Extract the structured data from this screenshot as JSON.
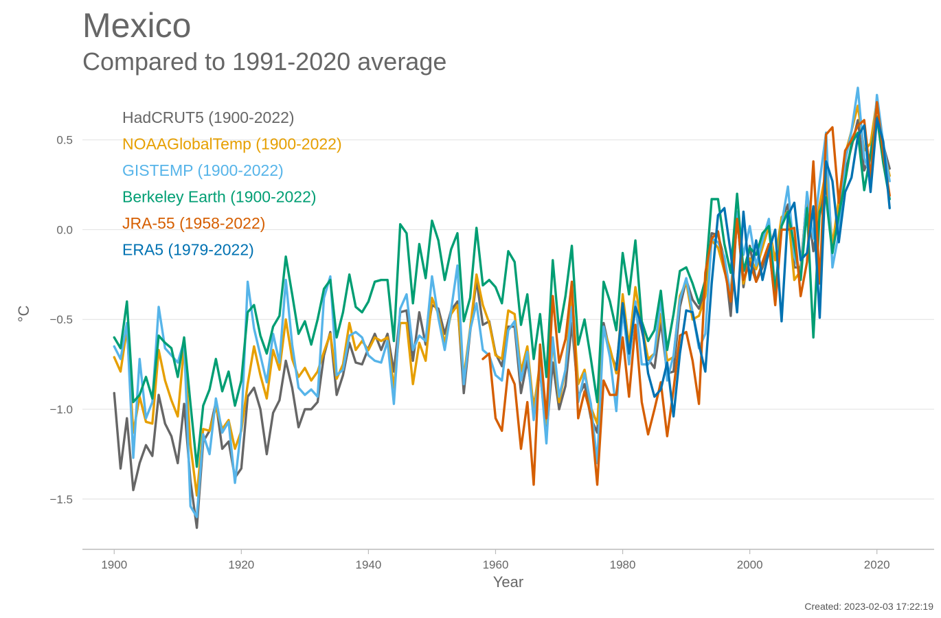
{
  "title": "Mexico",
  "subtitle": "Compared to 1991-2020 average",
  "created": "Created: 2023-02-03 17:22:19",
  "chart_data": {
    "type": "line",
    "title": "Mexico",
    "subtitle": "Compared to 1991-2020 average",
    "xlabel": "Year",
    "ylabel": "°C",
    "xlim": [
      1895,
      2029
    ],
    "ylim": [
      -1.78,
      0.82
    ],
    "xticks": [
      1900,
      1920,
      1940,
      1960,
      1980,
      2000,
      2020
    ],
    "yticks": [
      0.5,
      0.0,
      -0.5,
      -1.0,
      -1.5
    ],
    "ytick_labels": [
      "0.5",
      "0.0",
      "−0.5",
      "−1.0",
      "−1.5"
    ],
    "grid": "horizontal",
    "legend_placement": "top-left",
    "series": [
      {
        "name": "HadCRUT5 (1900-2022)",
        "color": "#666666",
        "start": 1900,
        "values": [
          -0.91,
          -1.33,
          -1.05,
          -1.45,
          -1.3,
          -1.2,
          -1.26,
          -0.92,
          -1.08,
          -1.15,
          -1.3,
          -0.97,
          -1.4,
          -1.66,
          -1.18,
          -1.12,
          -0.96,
          -1.22,
          -1.18,
          -1.38,
          -1.33,
          -0.93,
          -0.88,
          -1.0,
          -1.25,
          -1.02,
          -0.95,
          -0.73,
          -0.88,
          -1.1,
          -1.0,
          -1.0,
          -0.96,
          -0.7,
          -0.57,
          -0.92,
          -0.81,
          -0.63,
          -0.74,
          -0.75,
          -0.66,
          -0.58,
          -0.67,
          -0.58,
          -0.79,
          -0.46,
          -0.45,
          -0.73,
          -0.46,
          -0.64,
          -0.42,
          -0.44,
          -0.58,
          -0.45,
          -0.4,
          -0.91,
          -0.57,
          -0.28,
          -0.53,
          -0.51,
          -0.69,
          -0.76,
          -0.54,
          -0.54,
          -0.91,
          -0.73,
          -0.98,
          -0.79,
          -1.14,
          -0.74,
          -1.0,
          -0.87,
          -0.52,
          -0.93,
          -0.86,
          -1.05,
          -1.13,
          -0.52,
          -0.68,
          -0.77,
          -0.44,
          -0.73,
          -0.42,
          -0.56,
          -0.72,
          -0.77,
          -0.51,
          -0.8,
          -0.79,
          -0.43,
          -0.28,
          -0.39,
          -0.44,
          -0.33,
          -0.02,
          -0.03,
          -0.16,
          -0.48,
          0.08,
          -0.32,
          -0.09,
          -0.29,
          -0.21,
          -0.09,
          -0.4,
          0.05,
          0.14,
          -0.21,
          -0.21,
          0.18,
          -0.12,
          0.08,
          0.26,
          -0.12,
          0.12,
          0.32,
          0.46,
          0.61,
          0.33,
          0.42,
          0.72,
          0.47,
          0.34
        ]
      },
      {
        "name": "NOAAGlobalTemp (1900-2022)",
        "color": "#E69F00",
        "start": 1900,
        "values": [
          -0.71,
          -0.79,
          -0.55,
          -1.13,
          -0.93,
          -1.07,
          -1.08,
          -0.67,
          -0.84,
          -0.95,
          -1.04,
          -0.65,
          -1.2,
          -1.48,
          -1.11,
          -1.12,
          -0.99,
          -1.11,
          -1.06,
          -1.22,
          -1.12,
          -0.86,
          -0.65,
          -0.81,
          -0.94,
          -0.67,
          -0.78,
          -0.5,
          -0.72,
          -0.82,
          -0.77,
          -0.84,
          -0.79,
          -0.68,
          -0.58,
          -0.83,
          -0.75,
          -0.52,
          -0.67,
          -0.62,
          -0.67,
          -0.6,
          -0.62,
          -0.6,
          -0.88,
          -0.52,
          -0.52,
          -0.86,
          -0.63,
          -0.73,
          -0.38,
          -0.47,
          -0.63,
          -0.47,
          -0.42,
          -0.82,
          -0.55,
          -0.25,
          -0.42,
          -0.52,
          -0.7,
          -0.72,
          -0.45,
          -0.47,
          -0.79,
          -0.65,
          -1.0,
          -0.74,
          -1.08,
          -0.62,
          -0.96,
          -0.78,
          -0.34,
          -0.86,
          -0.78,
          -0.99,
          -1.08,
          -0.55,
          -0.66,
          -0.8,
          -0.36,
          -0.65,
          -0.32,
          -0.53,
          -0.72,
          -0.69,
          -0.47,
          -0.73,
          -0.71,
          -0.37,
          -0.29,
          -0.5,
          -0.48,
          -0.37,
          -0.06,
          -0.1,
          -0.23,
          -0.35,
          0.09,
          -0.3,
          -0.16,
          -0.22,
          -0.1,
          0.02,
          -0.17,
          0.07,
          0.1,
          -0.28,
          -0.23,
          0.2,
          -0.05,
          0.14,
          0.33,
          -0.09,
          0.17,
          0.42,
          0.55,
          0.69,
          0.44,
          0.48,
          0.72,
          0.45,
          0.3
        ]
      },
      {
        "name": "GISTEMP (1900-2022)",
        "color": "#56B4E9",
        "start": 1900,
        "values": [
          -0.65,
          -0.72,
          -0.52,
          -1.27,
          -0.72,
          -1.05,
          -0.96,
          -0.43,
          -0.66,
          -0.7,
          -0.74,
          -0.62,
          -1.54,
          -1.6,
          -1.14,
          -1.25,
          -0.94,
          -1.13,
          -1.07,
          -1.41,
          -1.1,
          -0.29,
          -0.55,
          -0.7,
          -0.85,
          -0.58,
          -0.74,
          -0.28,
          -0.64,
          -0.88,
          -0.92,
          -0.89,
          -0.93,
          -0.38,
          -0.26,
          -0.81,
          -0.78,
          -0.59,
          -0.57,
          -0.6,
          -0.7,
          -0.73,
          -0.74,
          -0.62,
          -0.97,
          -0.44,
          -0.36,
          -0.67,
          -0.59,
          -0.62,
          -0.26,
          -0.49,
          -0.67,
          -0.45,
          -0.2,
          -0.86,
          -0.56,
          -0.41,
          -0.67,
          -0.7,
          -0.81,
          -0.84,
          -0.56,
          -0.51,
          -0.84,
          -0.68,
          -1.06,
          -0.77,
          -1.19,
          -0.6,
          -0.93,
          -0.78,
          -0.43,
          -0.96,
          -0.8,
          -0.97,
          -1.3,
          -0.54,
          -0.71,
          -1.01,
          -0.44,
          -0.75,
          -0.4,
          -0.75,
          -0.75,
          -0.69,
          -0.38,
          -0.84,
          -0.7,
          -0.39,
          -0.27,
          -0.46,
          -0.66,
          -0.58,
          -0.05,
          -0.07,
          -0.15,
          -0.37,
          0.1,
          -0.14,
          0.02,
          -0.2,
          -0.06,
          0.06,
          -0.33,
          0.03,
          0.24,
          -0.15,
          -0.26,
          0.21,
          -0.05,
          0.27,
          0.54,
          -0.21,
          -0.02,
          0.38,
          0.55,
          0.79,
          0.4,
          0.3,
          0.75,
          0.48,
          0.27
        ]
      },
      {
        "name": "Berkeley Earth (1900-2022)",
        "color": "#009E73",
        "start": 1900,
        "values": [
          -0.6,
          -0.66,
          -0.4,
          -0.96,
          -0.92,
          -0.82,
          -0.94,
          -0.59,
          -0.63,
          -0.66,
          -0.82,
          -0.6,
          -0.97,
          -1.32,
          -0.98,
          -0.89,
          -0.72,
          -0.9,
          -0.79,
          -0.98,
          -0.84,
          -0.46,
          -0.42,
          -0.59,
          -0.69,
          -0.54,
          -0.48,
          -0.15,
          -0.36,
          -0.58,
          -0.51,
          -0.64,
          -0.5,
          -0.33,
          -0.28,
          -0.6,
          -0.46,
          -0.25,
          -0.43,
          -0.46,
          -0.4,
          -0.29,
          -0.28,
          -0.28,
          -0.62,
          0.03,
          -0.02,
          -0.41,
          -0.08,
          -0.27,
          0.05,
          -0.06,
          -0.28,
          -0.11,
          -0.02,
          -0.51,
          -0.38,
          0.01,
          -0.31,
          -0.28,
          -0.32,
          -0.41,
          -0.12,
          -0.18,
          -0.53,
          -0.36,
          -0.72,
          -0.47,
          -0.82,
          -0.17,
          -0.57,
          -0.37,
          -0.09,
          -0.64,
          -0.5,
          -0.72,
          -0.96,
          -0.29,
          -0.4,
          -0.56,
          -0.13,
          -0.36,
          -0.06,
          -0.51,
          -0.62,
          -0.56,
          -0.34,
          -0.67,
          -0.47,
          -0.23,
          -0.21,
          -0.3,
          -0.41,
          -0.28,
          0.17,
          0.17,
          -0.08,
          -0.24,
          0.2,
          -0.23,
          -0.1,
          -0.14,
          -0.02,
          0.02,
          -0.35,
          0.02,
          0.1,
          -0.09,
          -0.28,
          0.12,
          -0.6,
          0.1,
          0.18,
          -0.13,
          0.08,
          0.27,
          0.48,
          0.54,
          0.22,
          0.42,
          0.63,
          0.37,
          0.17
        ]
      },
      {
        "name": "JRA-55 (1958-2022)",
        "color": "#D55E00",
        "start": 1958,
        "values": [
          -0.72,
          -0.69,
          -1.05,
          -1.12,
          -0.78,
          -0.86,
          -1.22,
          -0.96,
          -1.42,
          -0.64,
          -1.05,
          -0.37,
          -0.74,
          -0.61,
          -0.29,
          -1.05,
          -0.9,
          -1.03,
          -1.42,
          -0.84,
          -0.92,
          -0.92,
          -0.6,
          -0.93,
          -0.53,
          -0.96,
          -1.14,
          -1.0,
          -0.85,
          -1.15,
          -0.89,
          -0.59,
          -0.57,
          -0.73,
          -0.97,
          -0.24,
          -0.05,
          -0.01,
          -0.22,
          -0.4,
          0.06,
          -0.28,
          -0.18,
          -0.29,
          -0.18,
          -0.08,
          -0.42,
          0.0,
          0.0,
          0.01,
          -0.37,
          -0.18,
          0.38,
          -0.3,
          0.53,
          0.57,
          0.15,
          0.44,
          0.5,
          0.58,
          0.61,
          0.29,
          0.71,
          0.42,
          0.19
        ]
      },
      {
        "name": "ERA5 (1979-2022)",
        "color": "#0072B2",
        "start": 1979,
        "values": [
          -0.78,
          -0.41,
          -0.69,
          -0.43,
          -0.53,
          -0.8,
          -0.93,
          -0.89,
          -0.74,
          -1.04,
          -0.69,
          -0.45,
          -0.46,
          -0.64,
          -0.79,
          -0.3,
          0.08,
          0.12,
          -0.13,
          -0.46,
          0.1,
          -0.28,
          -0.06,
          -0.28,
          -0.12,
          0.0,
          -0.51,
          0.08,
          0.15,
          -0.17,
          -0.13,
          0.13,
          -0.49,
          0.38,
          0.27,
          -0.07,
          0.21,
          0.29,
          0.52,
          0.58,
          0.21,
          0.62,
          0.49,
          0.12
        ]
      }
    ]
  }
}
